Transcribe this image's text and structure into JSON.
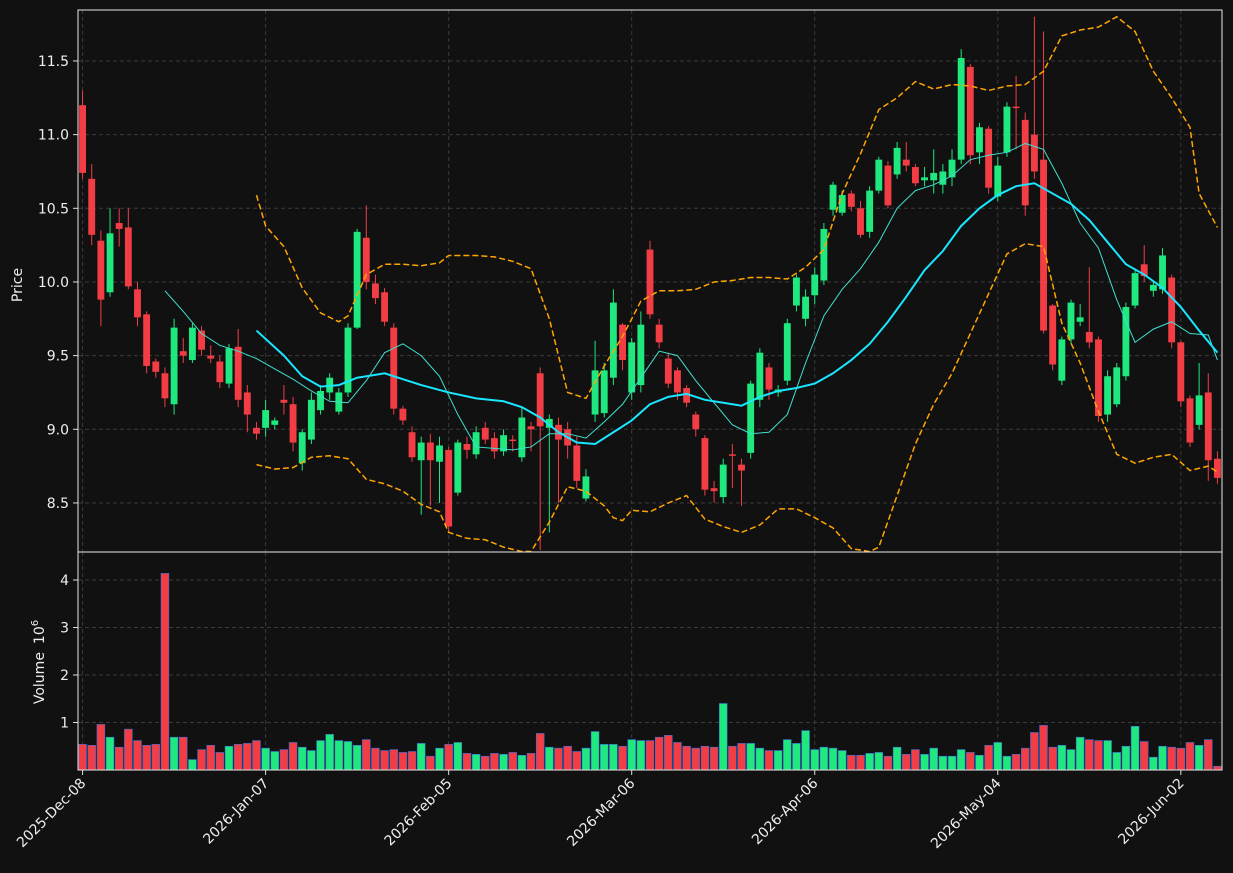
{
  "chart_data": {
    "type": "candlestick",
    "ylabel": "Price",
    "xlim": [
      -0.5,
      124.5
    ],
    "xticks": [
      {
        "value": 0,
        "label": "2025-Dec-08"
      },
      {
        "value": 20,
        "label": "2026-Jan-07"
      },
      {
        "value": 40,
        "label": "2026-Feb-05"
      },
      {
        "value": 60,
        "label": "2026-Mar-06"
      },
      {
        "value": 80,
        "label": "2026-Apr-06"
      },
      {
        "value": 100,
        "label": "2026-May-04"
      },
      {
        "value": 120,
        "label": "2026-Jun-02"
      }
    ],
    "ylim": [
      8.167,
      11.846
    ],
    "yticks": [
      8.5,
      {
        "value": 9,
        "label": "9.0"
      },
      9.5,
      {
        "value": 10,
        "label": "10.0"
      },
      10.5,
      {
        "value": 11,
        "label": "11.0"
      },
      11.5
    ],
    "grid": true,
    "up_color": "#1ee87e",
    "down_color": "#f23d45",
    "open": [
      11.2,
      10.7,
      10.28,
      9.93,
      10.4,
      10.37,
      9.95,
      9.78,
      9.46,
      9.38,
      9.17,
      9.53,
      9.47,
      9.67,
      9.5,
      9.46,
      9.31,
      9.56,
      9.25,
      9.01,
      9.01,
      9.03,
      9.2,
      9.17,
      8.77,
      8.93,
      9.13,
      9.25,
      9.12,
      9.25,
      9.69,
      10.3,
      9.99,
      9.93,
      9.69,
      9.14,
      8.98,
      8.79,
      8.91,
      8.78,
      8.86,
      8.57,
      8.9,
      8.83,
      9.01,
      8.94,
      8.85,
      8.93,
      8.81,
      9.02,
      9.38,
      9.01,
      9.03,
      9.0,
      8.89,
      8.53,
      9.1,
      9.11,
      9.35,
      9.71,
      9.25,
      9.3,
      10.22,
      9.71,
      9.48,
      9.4,
      9.28,
      9.1,
      8.94,
      8.6,
      8.54,
      8.83,
      8.76,
      8.84,
      9.2,
      9.42,
      9.25,
      9.33,
      9.84,
      9.75,
      9.91,
      10.01,
      10.49,
      10.47,
      10.6,
      10.5,
      10.34,
      10.62,
      10.79,
      10.73,
      10.83,
      10.78,
      10.69,
      10.69,
      10.66,
      10.71,
      10.83,
      11.46,
      10.88,
      11.04,
      10.58,
      10.88,
      11.19,
      11.1,
      11.0,
      10.83,
      9.84,
      9.33,
      9.61,
      9.73,
      9.66,
      9.61,
      9.1,
      9.17,
      9.36,
      9.84,
      10.12,
      9.94,
      9.95,
      10.03,
      9.59,
      9.21,
      9.03,
      9.25,
      8.8
    ],
    "high": [
      11.3,
      10.8,
      10.35,
      10.5,
      10.5,
      10.5,
      10.0,
      9.8,
      9.48,
      9.42,
      9.75,
      9.62,
      9.72,
      9.7,
      9.57,
      9.5,
      9.58,
      9.68,
      9.3,
      9.05,
      9.2,
      9.08,
      9.3,
      9.22,
      9.0,
      9.25,
      9.3,
      9.38,
      9.28,
      9.72,
      10.36,
      10.52,
      10.05,
      9.96,
      9.72,
      9.16,
      9.02,
      8.95,
      8.97,
      8.95,
      8.88,
      8.93,
      8.95,
      9.02,
      9.05,
      8.98,
      9.0,
      8.96,
      9.15,
      9.05,
      9.42,
      9.1,
      9.08,
      9.05,
      8.95,
      8.73,
      9.6,
      9.45,
      9.95,
      9.72,
      9.62,
      9.8,
      10.28,
      9.75,
      9.52,
      9.42,
      9.3,
      9.12,
      8.96,
      8.65,
      8.8,
      8.9,
      8.8,
      9.33,
      9.55,
      9.45,
      9.3,
      9.75,
      10.05,
      9.95,
      10.1,
      10.4,
      10.68,
      10.62,
      10.62,
      10.55,
      10.65,
      10.85,
      10.82,
      10.95,
      10.95,
      10.8,
      10.78,
      10.9,
      10.8,
      10.9,
      11.58,
      11.48,
      11.08,
      11.06,
      10.85,
      11.22,
      11.4,
      11.15,
      11.8,
      11.7,
      9.85,
      9.63,
      9.88,
      9.85,
      10.1,
      9.63,
      9.4,
      9.45,
      9.86,
      10.08,
      10.25,
      10.0,
      10.23,
      10.05,
      9.6,
      9.23,
      9.45,
      9.38,
      8.85
    ],
    "low": [
      10.7,
      10.25,
      9.7,
      9.9,
      10.24,
      9.95,
      9.7,
      9.38,
      9.35,
      9.15,
      9.1,
      9.45,
      9.45,
      9.5,
      9.45,
      9.28,
      9.28,
      9.15,
      8.98,
      8.93,
      8.95,
      9.0,
      9.1,
      8.85,
      8.72,
      8.9,
      9.1,
      9.2,
      9.1,
      9.22,
      9.68,
      9.95,
      9.85,
      9.7,
      9.1,
      9.03,
      8.78,
      8.42,
      8.48,
      8.5,
      8.3,
      8.55,
      8.8,
      8.8,
      8.9,
      8.8,
      8.82,
      8.85,
      8.78,
      8.85,
      8.18,
      8.3,
      8.5,
      8.8,
      8.6,
      8.51,
      9.05,
      9.08,
      9.3,
      9.4,
      9.2,
      9.25,
      9.75,
      9.55,
      9.28,
      9.2,
      9.15,
      8.95,
      8.55,
      8.5,
      8.5,
      8.6,
      8.48,
      8.8,
      9.15,
      9.2,
      9.22,
      9.3,
      9.8,
      9.7,
      9.85,
      9.98,
      10.45,
      10.45,
      10.48,
      10.3,
      10.3,
      10.6,
      10.5,
      10.7,
      10.75,
      10.65,
      10.65,
      10.6,
      10.6,
      10.65,
      10.8,
      10.8,
      10.8,
      10.6,
      10.55,
      10.85,
      10.9,
      10.45,
      10.7,
      9.65,
      9.4,
      9.3,
      9.58,
      9.7,
      9.55,
      9.05,
      9.05,
      9.15,
      9.33,
      9.82,
      10.0,
      9.9,
      9.92,
      9.55,
      9.15,
      8.88,
      9.0,
      8.65,
      8.63
    ],
    "close": [
      10.74,
      10.32,
      9.88,
      10.33,
      10.36,
      9.97,
      9.76,
      9.43,
      9.39,
      9.21,
      9.69,
      9.5,
      9.69,
      9.54,
      9.48,
      9.32,
      9.55,
      9.2,
      9.1,
      8.97,
      9.13,
      9.06,
      9.18,
      8.91,
      8.98,
      9.2,
      9.26,
      9.35,
      9.25,
      9.69,
      10.34,
      10.0,
      9.89,
      9.73,
      9.14,
      9.06,
      8.81,
      8.91,
      8.79,
      8.89,
      8.34,
      8.91,
      8.86,
      8.98,
      8.93,
      8.85,
      8.96,
      8.92,
      9.08,
      9.0,
      9.02,
      9.07,
      8.93,
      8.89,
      8.65,
      8.68,
      9.4,
      9.4,
      9.86,
      9.47,
      9.59,
      9.71,
      9.78,
      9.59,
      9.31,
      9.25,
      9.18,
      9.0,
      8.59,
      8.58,
      8.76,
      8.82,
      8.72,
      9.31,
      9.52,
      9.27,
      9.27,
      9.72,
      10.03,
      9.9,
      10.05,
      10.36,
      10.66,
      10.59,
      10.51,
      10.32,
      10.62,
      10.83,
      10.52,
      10.91,
      10.79,
      10.67,
      10.71,
      10.74,
      10.75,
      10.83,
      11.52,
      10.86,
      11.05,
      10.64,
      10.79,
      11.19,
      11.18,
      10.52,
      10.75,
      9.67,
      9.44,
      9.61,
      9.86,
      9.76,
      9.59,
      9.09,
      9.36,
      9.42,
      9.83,
      10.06,
      10.04,
      9.98,
      10.18,
      9.59,
      9.19,
      8.91,
      9.23,
      8.79,
      8.67
    ],
    "lines": [
      {
        "color": "#40e0d0",
        "width": 1,
        "style": "solid",
        "x": [
          9,
          11,
          13,
          15,
          17,
          19,
          21,
          23,
          25,
          27,
          29,
          31,
          33,
          35,
          37,
          39,
          41,
          43,
          45,
          47,
          49,
          51,
          53,
          55,
          57,
          59,
          61,
          63,
          65,
          67,
          69,
          71,
          73,
          75,
          77,
          79,
          81,
          83,
          85,
          87,
          89,
          91,
          93,
          95,
          97,
          99,
          101,
          103,
          105,
          107,
          109,
          111,
          113,
          115,
          117,
          119,
          121,
          123,
          124
        ],
        "values": [
          9.94,
          9.8,
          9.65,
          9.57,
          9.53,
          9.48,
          9.41,
          9.34,
          9.26,
          9.19,
          9.18,
          9.33,
          9.52,
          9.58,
          9.5,
          9.36,
          9.1,
          8.88,
          8.87,
          8.86,
          8.88,
          8.97,
          8.97,
          8.94,
          9.05,
          9.17,
          9.35,
          9.53,
          9.5,
          9.33,
          9.18,
          9.03,
          8.97,
          8.98,
          9.1,
          9.45,
          9.77,
          9.95,
          10.09,
          10.27,
          10.5,
          10.62,
          10.66,
          10.72,
          10.83,
          10.86,
          10.88,
          10.94,
          10.9,
          10.67,
          10.4,
          10.23,
          9.88,
          9.59,
          9.68,
          9.73,
          9.65,
          9.64,
          9.47
        ]
      },
      {
        "color": "#19e6ff",
        "width": 2,
        "style": "solid",
        "x": [
          19,
          22,
          24,
          26,
          28,
          30,
          33,
          35,
          37,
          40,
          43,
          46,
          48,
          50,
          52,
          54,
          56,
          58,
          60,
          62,
          64,
          66,
          68,
          70,
          72,
          74,
          76,
          78,
          80,
          82,
          84,
          86,
          88,
          90,
          92,
          94,
          96,
          98,
          100,
          102,
          104,
          106,
          108,
          110,
          112,
          114,
          116,
          118,
          120,
          122,
          124
        ],
        "values": [
          9.67,
          9.5,
          9.36,
          9.29,
          9.3,
          9.35,
          9.38,
          9.34,
          9.3,
          9.25,
          9.21,
          9.19,
          9.15,
          9.08,
          8.98,
          8.91,
          8.9,
          8.98,
          9.06,
          9.17,
          9.22,
          9.24,
          9.2,
          9.18,
          9.16,
          9.22,
          9.26,
          9.28,
          9.31,
          9.38,
          9.47,
          9.58,
          9.73,
          9.9,
          10.08,
          10.21,
          10.38,
          10.5,
          10.59,
          10.65,
          10.67,
          10.6,
          10.53,
          10.42,
          10.27,
          10.12,
          10.05,
          9.96,
          9.83,
          9.67,
          9.52
        ]
      },
      {
        "color": "#ffa500",
        "width": 1.5,
        "style": "dashed",
        "x": [
          19,
          20,
          22,
          24,
          26,
          28,
          29,
          31,
          33,
          35,
          37,
          39,
          40,
          43,
          45,
          47,
          49,
          51,
          53,
          55,
          57,
          59,
          61,
          63,
          65,
          67,
          69,
          71,
          73,
          75,
          77,
          79,
          81,
          83,
          85,
          87,
          89,
          91,
          93,
          95,
          97,
          99,
          101,
          103,
          105,
          107,
          109,
          111,
          113,
          115,
          117,
          119,
          121,
          122,
          124
        ],
        "values": [
          10.59,
          10.38,
          10.24,
          9.96,
          9.79,
          9.73,
          9.77,
          10.05,
          10.12,
          10.12,
          10.11,
          10.13,
          10.18,
          10.18,
          10.17,
          10.14,
          10.09,
          9.75,
          9.25,
          9.21,
          9.43,
          9.63,
          9.87,
          9.94,
          9.94,
          9.95,
          10.0,
          10.01,
          10.03,
          10.03,
          10.02,
          10.1,
          10.22,
          10.6,
          10.87,
          11.17,
          11.25,
          11.36,
          11.31,
          11.34,
          11.33,
          11.3,
          11.33,
          11.34,
          11.43,
          11.67,
          11.71,
          11.73,
          11.8,
          11.7,
          11.43,
          11.25,
          11.05,
          10.6,
          10.37
        ]
      },
      {
        "color": "#ffa500",
        "width": 1.5,
        "style": "dashed",
        "x": [
          19,
          21,
          23,
          25,
          27,
          29,
          31,
          33,
          35,
          37,
          39,
          40,
          42,
          44,
          46,
          48,
          49,
          51,
          53,
          55,
          57,
          58,
          59,
          60,
          62,
          64,
          66,
          68,
          70,
          72,
          74,
          76,
          78,
          80,
          82,
          84,
          86,
          87,
          89,
          91,
          93,
          95,
          97,
          99,
          101,
          103,
          105,
          107,
          109,
          111,
          113,
          115,
          117,
          119,
          121,
          123,
          124
        ],
        "values": [
          8.76,
          8.73,
          8.74,
          8.81,
          8.82,
          8.8,
          8.66,
          8.63,
          8.58,
          8.49,
          8.44,
          8.3,
          8.26,
          8.25,
          8.2,
          8.17,
          8.17,
          8.37,
          8.61,
          8.58,
          8.48,
          8.4,
          8.38,
          8.45,
          8.44,
          8.5,
          8.55,
          8.39,
          8.34,
          8.3,
          8.35,
          8.46,
          8.46,
          8.4,
          8.33,
          8.19,
          8.17,
          8.2,
          8.55,
          8.9,
          9.17,
          9.38,
          9.65,
          9.92,
          10.19,
          10.26,
          10.24,
          9.72,
          9.45,
          9.12,
          8.83,
          8.77,
          8.81,
          8.83,
          8.72,
          8.75,
          8.71
        ]
      }
    ],
    "volume": {
      "ylabel": "Volume",
      "scale_base": "10",
      "scale_exponent": "6",
      "ylim": [
        0,
        4.59
      ],
      "yticks": [
        1,
        2,
        3,
        4
      ],
      "edge_color": "#3a6fd8",
      "values": [
        0.54,
        0.52,
        0.96,
        0.69,
        0.48,
        0.86,
        0.62,
        0.52,
        0.54,
        4.14,
        0.69,
        0.69,
        0.22,
        0.43,
        0.52,
        0.37,
        0.5,
        0.54,
        0.56,
        0.62,
        0.46,
        0.39,
        0.43,
        0.58,
        0.48,
        0.41,
        0.62,
        0.75,
        0.62,
        0.6,
        0.52,
        0.64,
        0.46,
        0.41,
        0.43,
        0.37,
        0.39,
        0.56,
        0.29,
        0.46,
        0.54,
        0.58,
        0.35,
        0.33,
        0.29,
        0.35,
        0.33,
        0.37,
        0.31,
        0.35,
        0.77,
        0.48,
        0.46,
        0.5,
        0.39,
        0.46,
        0.81,
        0.54,
        0.54,
        0.5,
        0.64,
        0.62,
        0.62,
        0.69,
        0.73,
        0.58,
        0.5,
        0.46,
        0.5,
        0.48,
        1.4,
        0.5,
        0.56,
        0.56,
        0.46,
        0.41,
        0.41,
        0.64,
        0.56,
        0.83,
        0.43,
        0.48,
        0.46,
        0.41,
        0.31,
        0.31,
        0.35,
        0.37,
        0.29,
        0.48,
        0.33,
        0.43,
        0.33,
        0.46,
        0.29,
        0.29,
        0.43,
        0.37,
        0.31,
        0.52,
        0.58,
        0.29,
        0.33,
        0.46,
        0.79,
        0.94,
        0.48,
        0.52,
        0.43,
        0.69,
        0.64,
        0.62,
        0.62,
        0.37,
        0.5,
        0.92,
        0.6,
        0.27,
        0.5,
        0.48,
        0.46,
        0.58,
        0.52,
        0.64,
        0.08
      ]
    }
  }
}
